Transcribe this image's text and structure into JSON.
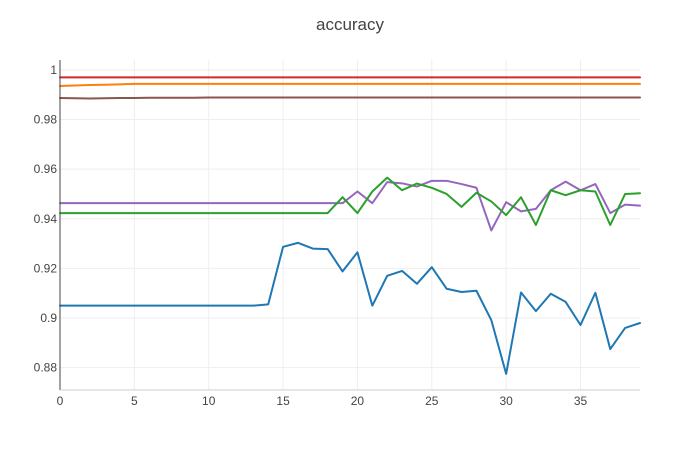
{
  "chart_data": {
    "type": "line",
    "title": "accuracy",
    "xlabel": "",
    "ylabel": "",
    "xlim": [
      0,
      39
    ],
    "ylim": [
      0.871,
      1.004
    ],
    "grid": true,
    "x_ticks": [
      0,
      5,
      10,
      15,
      20,
      25,
      30,
      35
    ],
    "x_tick_labels": [
      "0",
      "5",
      "10",
      "15",
      "20",
      "25",
      "30",
      "35"
    ],
    "y_ticks": [
      0.88,
      0.9,
      0.92,
      0.94,
      0.96,
      0.98,
      1
    ],
    "y_tick_labels": [
      "0.88",
      "0.9",
      "0.92",
      "0.94",
      "0.96",
      "0.98",
      "1"
    ],
    "x": [
      0,
      1,
      2,
      3,
      4,
      5,
      6,
      7,
      8,
      9,
      10,
      11,
      12,
      13,
      14,
      15,
      16,
      17,
      18,
      19,
      20,
      21,
      22,
      23,
      24,
      25,
      26,
      27,
      28,
      29,
      30,
      31,
      32,
      33,
      34,
      35,
      36,
      37,
      38,
      39
    ],
    "series": [
      {
        "color": "#d62728",
        "values": [
          0.997,
          0.997,
          0.997,
          0.997,
          0.997,
          0.997,
          0.997,
          0.997,
          0.997,
          0.997,
          0.997,
          0.997,
          0.997,
          0.997,
          0.997,
          0.997,
          0.997,
          0.997,
          0.997,
          0.997,
          0.997,
          0.997,
          0.997,
          0.997,
          0.997,
          0.997,
          0.997,
          0.997,
          0.997,
          0.997,
          0.997,
          0.997,
          0.997,
          0.997,
          0.997,
          0.997,
          0.997,
          0.997,
          0.997,
          0.997
        ]
      },
      {
        "color": "#ff7f0e",
        "values": [
          0.9935,
          0.9937,
          0.9939,
          0.994,
          0.9942,
          0.9944,
          0.9944,
          0.9944,
          0.9944,
          0.9944,
          0.9944,
          0.9944,
          0.9944,
          0.9944,
          0.9944,
          0.9944,
          0.9944,
          0.9944,
          0.9944,
          0.9944,
          0.9944,
          0.9944,
          0.9944,
          0.9944,
          0.9944,
          0.9944,
          0.9944,
          0.9944,
          0.9944,
          0.9944,
          0.9944,
          0.9944,
          0.9944,
          0.9944,
          0.9944,
          0.9944,
          0.9944,
          0.9944,
          0.9944,
          0.9944
        ]
      },
      {
        "color": "#8c564b",
        "values": [
          0.9887,
          0.9886,
          0.9885,
          0.9886,
          0.9887,
          0.9887,
          0.9888,
          0.9888,
          0.9888,
          0.9888,
          0.9889,
          0.9889,
          0.9889,
          0.9889,
          0.9889,
          0.9889,
          0.9889,
          0.9889,
          0.9889,
          0.9889,
          0.9889,
          0.9889,
          0.9889,
          0.9889,
          0.9889,
          0.9889,
          0.9889,
          0.9889,
          0.9889,
          0.9889,
          0.9889,
          0.9889,
          0.9889,
          0.9889,
          0.9889,
          0.9889,
          0.9889,
          0.9889,
          0.9889,
          0.9889
        ]
      },
      {
        "color": "#9467bd",
        "values": [
          0.9463,
          0.9463,
          0.9463,
          0.9463,
          0.9463,
          0.9463,
          0.9463,
          0.9463,
          0.9463,
          0.9463,
          0.9463,
          0.9463,
          0.9463,
          0.9463,
          0.9463,
          0.9463,
          0.9463,
          0.9463,
          0.9463,
          0.9463,
          0.951,
          0.9463,
          0.9548,
          0.9543,
          0.953,
          0.9553,
          0.9553,
          0.954,
          0.9525,
          0.9353,
          0.9467,
          0.943,
          0.944,
          0.9515,
          0.955,
          0.9515,
          0.954,
          0.9423,
          0.9457,
          0.9453
        ]
      },
      {
        "color": "#2ca02c",
        "values": [
          0.9423,
          0.9423,
          0.9423,
          0.9423,
          0.9423,
          0.9423,
          0.9423,
          0.9423,
          0.9423,
          0.9423,
          0.9423,
          0.9423,
          0.9423,
          0.9423,
          0.9423,
          0.9423,
          0.9423,
          0.9423,
          0.9423,
          0.9487,
          0.9423,
          0.951,
          0.9566,
          0.9515,
          0.9542,
          0.9525,
          0.95,
          0.9448,
          0.9505,
          0.947,
          0.9415,
          0.9487,
          0.9375,
          0.9515,
          0.9495,
          0.9515,
          0.951,
          0.9375,
          0.95,
          0.9503
        ]
      },
      {
        "color": "#1f77b4",
        "values": [
          0.905,
          0.905,
          0.905,
          0.905,
          0.905,
          0.905,
          0.905,
          0.905,
          0.905,
          0.905,
          0.905,
          0.905,
          0.905,
          0.905,
          0.9055,
          0.9287,
          0.9303,
          0.928,
          0.9278,
          0.9188,
          0.9265,
          0.905,
          0.917,
          0.919,
          0.9138,
          0.9205,
          0.9118,
          0.9105,
          0.911,
          0.8992,
          0.8775,
          0.9103,
          0.9028,
          0.9098,
          0.9065,
          0.8972,
          0.9102,
          0.8875,
          0.896,
          0.898
        ]
      }
    ]
  }
}
